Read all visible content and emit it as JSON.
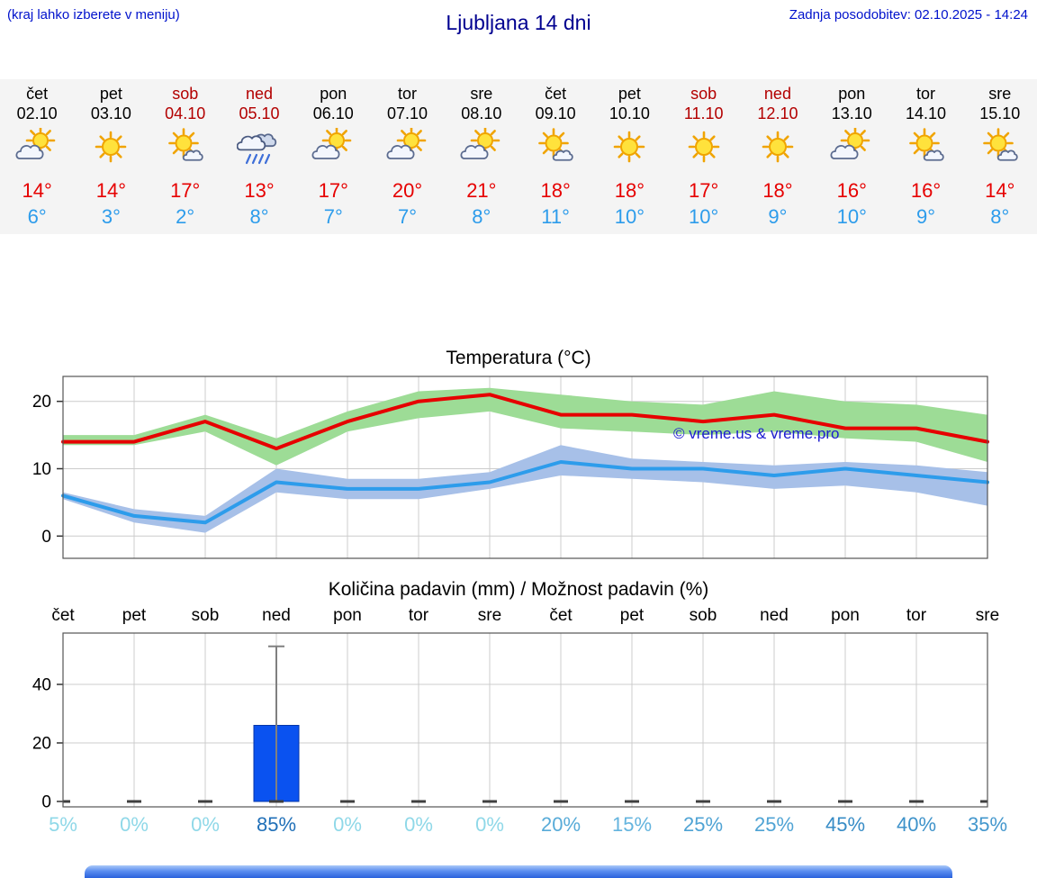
{
  "header": {
    "left_note": "(kraj lahko izberete v meniju)",
    "title": "Ljubljana 14 dni",
    "last_update": "Zadnja posodobitev: 02.10.2025 - 14:24"
  },
  "forecast": {
    "days": [
      {
        "name": "čet",
        "date": "02.10",
        "weekend": false,
        "icon": "sun-cloud",
        "tmax": "14°",
        "tmin": "6°"
      },
      {
        "name": "pet",
        "date": "03.10",
        "weekend": false,
        "icon": "sun",
        "tmax": "14°",
        "tmin": "3°"
      },
      {
        "name": "sob",
        "date": "04.10",
        "weekend": true,
        "icon": "sun-small-cloud",
        "tmax": "17°",
        "tmin": "2°"
      },
      {
        "name": "ned",
        "date": "05.10",
        "weekend": true,
        "icon": "rain",
        "tmax": "13°",
        "tmin": "8°"
      },
      {
        "name": "pon",
        "date": "06.10",
        "weekend": false,
        "icon": "sun-cloud",
        "tmax": "17°",
        "tmin": "7°"
      },
      {
        "name": "tor",
        "date": "07.10",
        "weekend": false,
        "icon": "sun-cloud",
        "tmax": "20°",
        "tmin": "7°"
      },
      {
        "name": "sre",
        "date": "08.10",
        "weekend": false,
        "icon": "sun-cloud",
        "tmax": "21°",
        "tmin": "8°"
      },
      {
        "name": "čet",
        "date": "09.10",
        "weekend": false,
        "icon": "sun-small-cloud",
        "tmax": "18°",
        "tmin": "11°"
      },
      {
        "name": "pet",
        "date": "10.10",
        "weekend": false,
        "icon": "sun",
        "tmax": "18°",
        "tmin": "10°"
      },
      {
        "name": "sob",
        "date": "11.10",
        "weekend": true,
        "icon": "sun",
        "tmax": "17°",
        "tmin": "10°"
      },
      {
        "name": "ned",
        "date": "12.10",
        "weekend": true,
        "icon": "sun",
        "tmax": "18°",
        "tmin": "9°"
      },
      {
        "name": "pon",
        "date": "13.10",
        "weekend": false,
        "icon": "sun-cloud",
        "tmax": "16°",
        "tmin": "10°"
      },
      {
        "name": "tor",
        "date": "14.10",
        "weekend": false,
        "icon": "sun-small-cloud",
        "tmax": "16°",
        "tmin": "9°"
      },
      {
        "name": "sre",
        "date": "15.10",
        "weekend": false,
        "icon": "sun-small-cloud",
        "tmax": "14°",
        "tmin": "8°"
      }
    ]
  },
  "chart_data": [
    {
      "type": "line",
      "title": "Temperatura (°C)",
      "categories": [
        "čet",
        "pet",
        "sob",
        "ned",
        "pon",
        "tor",
        "sre",
        "čet",
        "pet",
        "sob",
        "ned",
        "pon",
        "tor",
        "sre"
      ],
      "series": [
        {
          "name": "max-temperature",
          "color": "#e60000",
          "band_color": "#9ddc96",
          "values": [
            14,
            14,
            17,
            13,
            17,
            20,
            21,
            18,
            18,
            17,
            18,
            16,
            16,
            14
          ],
          "band_upper": [
            15,
            15,
            18,
            14.5,
            18.5,
            21.5,
            22,
            21,
            20,
            19.5,
            21.5,
            20,
            19.5,
            18
          ],
          "band_lower": [
            13.5,
            13.5,
            15.5,
            10.5,
            15.5,
            17.5,
            18.5,
            16,
            15.5,
            15,
            15.5,
            14.5,
            14,
            11
          ]
        },
        {
          "name": "min-temperature",
          "color": "#2d9ceb",
          "band_color": "#a7c0e8",
          "values": [
            6,
            3,
            2,
            8,
            7,
            7,
            8,
            11,
            10,
            10,
            9,
            10,
            9,
            8
          ],
          "band_upper": [
            6.5,
            4,
            3,
            10,
            8.5,
            8.5,
            9.5,
            13.5,
            11.5,
            11,
            10.5,
            11,
            10.5,
            9.5
          ],
          "band_lower": [
            5.5,
            2,
            0.5,
            6.5,
            5.5,
            5.5,
            7,
            9,
            8.5,
            8,
            7,
            7.5,
            6.5,
            4.5
          ]
        }
      ],
      "ylim": [
        -3.3,
        23.7
      ],
      "yticks": [
        0,
        10,
        20
      ],
      "grid": true,
      "legend_position": "none",
      "watermark": "© vreme.us & vreme.pro"
    },
    {
      "type": "bar",
      "title": "Količina padavin (mm) / Možnost padavin (%)",
      "categories": [
        "čet",
        "pet",
        "sob",
        "ned",
        "pon",
        "tor",
        "sre",
        "čet",
        "pet",
        "sob",
        "ned",
        "pon",
        "tor",
        "sre"
      ],
      "values": [
        0,
        0,
        0,
        26,
        0,
        0,
        0,
        0,
        0,
        0,
        0,
        0,
        0,
        0
      ],
      "whisker_max": [
        0,
        0,
        0,
        53,
        0,
        0,
        0,
        0,
        0,
        0,
        0,
        0,
        0,
        0
      ],
      "probabilities": [
        {
          "label": "5%",
          "color": "#8fd8e8"
        },
        {
          "label": "0%",
          "color": "#8fd8e8"
        },
        {
          "label": "0%",
          "color": "#8fd8e8"
        },
        {
          "label": "85%",
          "color": "#2170b8"
        },
        {
          "label": "0%",
          "color": "#8fd8e8"
        },
        {
          "label": "0%",
          "color": "#8fd8e8"
        },
        {
          "label": "0%",
          "color": "#8fd8e8"
        },
        {
          "label": "20%",
          "color": "#58abd8"
        },
        {
          "label": "15%",
          "color": "#64b4de"
        },
        {
          "label": "25%",
          "color": "#4fa3d4"
        },
        {
          "label": "25%",
          "color": "#4fa3d4"
        },
        {
          "label": "45%",
          "color": "#378cc6"
        },
        {
          "label": "40%",
          "color": "#3d92ca"
        },
        {
          "label": "35%",
          "color": "#4397cd"
        }
      ],
      "ylim": [
        0,
        57
      ],
      "yticks": [
        0,
        20,
        40
      ],
      "bar_color": "#0a52f0",
      "grid": true
    }
  ],
  "colors": {
    "accent_red": "#e60000",
    "accent_blue": "#2d9ceb",
    "weekend_red": "#b30000",
    "header_blue": "#0012cc",
    "title_blue": "#000090",
    "strip_bg": "#f4f4f4"
  }
}
